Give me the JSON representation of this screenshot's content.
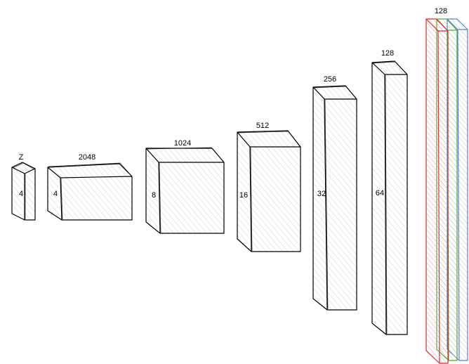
{
  "diagram": {
    "colors": {
      "stroke": "#000000",
      "hatch": "#cfcfcf",
      "red": "#cc3333",
      "green": "#5aa048",
      "blue": "#5a84c8"
    },
    "blocks": [
      {
        "top_label": "Z",
        "side_label": "4"
      },
      {
        "top_label": "2048",
        "side_label": "4"
      },
      {
        "top_label": "1024",
        "side_label": "8"
      },
      {
        "top_label": "512",
        "side_label": "16"
      },
      {
        "top_label": "256",
        "side_label": "32"
      },
      {
        "top_label": "128",
        "side_label": "64"
      }
    ],
    "output": {
      "top_label": "128",
      "channel_colors": [
        "red",
        "green",
        "blue"
      ]
    }
  }
}
